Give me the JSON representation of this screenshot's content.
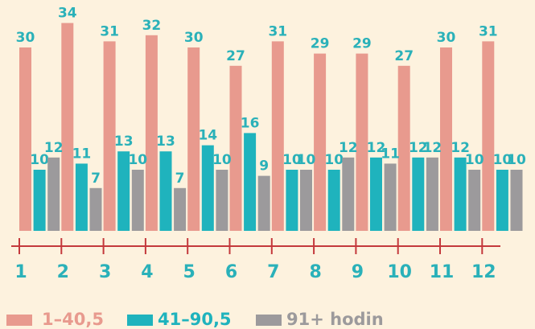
{
  "chart_data": {
    "type": "bar",
    "categories": [
      "1",
      "2",
      "3",
      "4",
      "5",
      "6",
      "7",
      "8",
      "9",
      "10",
      "11",
      "12"
    ],
    "series": [
      {
        "name": "1–40,5",
        "color": "#e89a8e",
        "values": [
          30,
          34,
          31,
          32,
          30,
          27,
          31,
          29,
          29,
          27,
          30,
          31
        ]
      },
      {
        "name": "41–90,5",
        "color": "#1fb3bd",
        "values": [
          10,
          11,
          13,
          13,
          14,
          16,
          10,
          10,
          12,
          12,
          12,
          10
        ]
      },
      {
        "name": "91+ hodin",
        "color": "#9c9a9c",
        "values": [
          12,
          7,
          10,
          7,
          10,
          9,
          10,
          12,
          11,
          12,
          10,
          10
        ]
      }
    ],
    "label_color": "#2ab1b9",
    "axis_color": "#c4393c"
  }
}
